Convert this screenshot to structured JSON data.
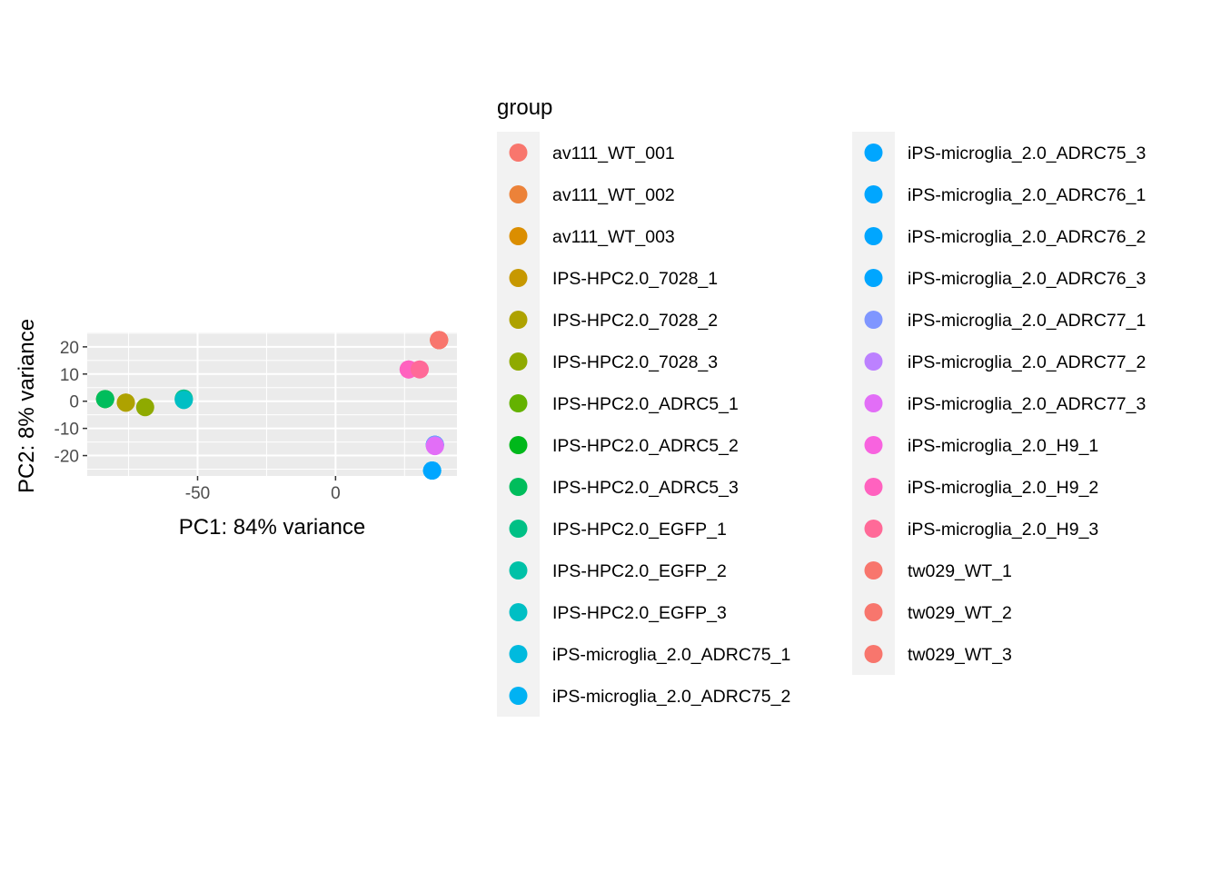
{
  "chart_data": {
    "type": "scatter",
    "xlabel": "PC1: 84% variance",
    "ylabel": "PC2: 8% variance",
    "xlim": [
      -90,
      44
    ],
    "ylim": [
      -27.5,
      25.3
    ],
    "x_ticks": [
      -50,
      0
    ],
    "y_ticks": [
      -20,
      -10,
      0,
      10,
      20
    ],
    "grid": true,
    "legend": {
      "title": "group",
      "position": "right",
      "columns": 2
    },
    "series": [
      {
        "name": "av111_WT_001",
        "color": "#F8766D",
        "points": [
          [
            37.5,
            22.5
          ]
        ]
      },
      {
        "name": "av111_WT_002",
        "color": "#EC8239",
        "points": [
          [
            37.5,
            22.5
          ]
        ]
      },
      {
        "name": "av111_WT_003",
        "color": "#DB8E00",
        "points": [
          [
            37.5,
            22.5
          ]
        ]
      },
      {
        "name": "IPS-HPC2.0_7028_1",
        "color": "#C79800",
        "points": [
          [
            -76,
            -0.5
          ]
        ]
      },
      {
        "name": "IPS-HPC2.0_7028_2",
        "color": "#AEA200",
        "points": [
          [
            -76,
            -0.5
          ]
        ]
      },
      {
        "name": "IPS-HPC2.0_7028_3",
        "color": "#8FAA00",
        "points": [
          [
            -69,
            -2.2
          ]
        ]
      },
      {
        "name": "IPS-HPC2.0_ADRC5_1",
        "color": "#64B200",
        "points": [
          [
            -83.5,
            0.8
          ]
        ]
      },
      {
        "name": "IPS-HPC2.0_ADRC5_2",
        "color": "#00B81B",
        "points": [
          [
            -83.5,
            0.8
          ]
        ]
      },
      {
        "name": "IPS-HPC2.0_ADRC5_3",
        "color": "#00BD5C",
        "points": [
          [
            -83.5,
            0.8
          ]
        ]
      },
      {
        "name": "IPS-HPC2.0_EGFP_1",
        "color": "#00C085",
        "points": [
          [
            -55,
            1.0
          ]
        ]
      },
      {
        "name": "IPS-HPC2.0_EGFP_2",
        "color": "#00C1A7",
        "points": [
          [
            -55,
            0.5
          ]
        ]
      },
      {
        "name": "IPS-HPC2.0_EGFP_3",
        "color": "#00BFC4",
        "points": [
          [
            -55,
            0.5
          ]
        ]
      },
      {
        "name": "iPS-microglia_2.0_ADRC75_1",
        "color": "#00BADE",
        "points": [
          [
            35,
            -25.5
          ]
        ]
      },
      {
        "name": "iPS-microglia_2.0_ADRC75_2",
        "color": "#00B2F3",
        "points": [
          [
            35,
            -25.5
          ]
        ]
      },
      {
        "name": "iPS-microglia_2.0_ADRC75_3",
        "color": "#00A6FF",
        "points": [
          [
            35,
            -25.5
          ]
        ]
      },
      {
        "name": "iPS-microglia_2.0_ADRC76_1",
        "color": "#00A6FF",
        "points": [
          [
            36,
            -16
          ]
        ]
      },
      {
        "name": "iPS-microglia_2.0_ADRC76_2",
        "color": "#00A6FF",
        "points": [
          [
            36,
            -16
          ]
        ]
      },
      {
        "name": "iPS-microglia_2.0_ADRC76_3",
        "color": "#00A6FF",
        "points": [
          [
            36,
            -16
          ]
        ]
      },
      {
        "name": "iPS-microglia_2.0_ADRC77_1",
        "color": "#7F96FF",
        "points": [
          [
            36,
            -16
          ]
        ]
      },
      {
        "name": "iPS-microglia_2.0_ADRC77_2",
        "color": "#BC81FF",
        "points": [
          [
            36,
            -16.3
          ]
        ]
      },
      {
        "name": "iPS-microglia_2.0_ADRC77_3",
        "color": "#E26EF7",
        "points": [
          [
            36,
            -16.5
          ]
        ]
      },
      {
        "name": "iPS-microglia_2.0_H9_1",
        "color": "#F863DF",
        "points": [
          [
            26.5,
            11.7
          ]
        ]
      },
      {
        "name": "iPS-microglia_2.0_H9_2",
        "color": "#FF62BF",
        "points": [
          [
            26.5,
            11.7
          ]
        ]
      },
      {
        "name": "iPS-microglia_2.0_H9_3",
        "color": "#FF6A98",
        "points": [
          [
            30.5,
            11.7
          ]
        ]
      },
      {
        "name": "tw029_WT_1",
        "color": "#F8766D",
        "points": [
          [
            37.5,
            22.5
          ]
        ]
      },
      {
        "name": "tw029_WT_2",
        "color": "#F8766D",
        "points": [
          [
            37.5,
            22.5
          ]
        ]
      },
      {
        "name": "tw029_WT_3",
        "color": "#F8766D",
        "points": [
          [
            37.5,
            22.5
          ]
        ]
      }
    ]
  }
}
